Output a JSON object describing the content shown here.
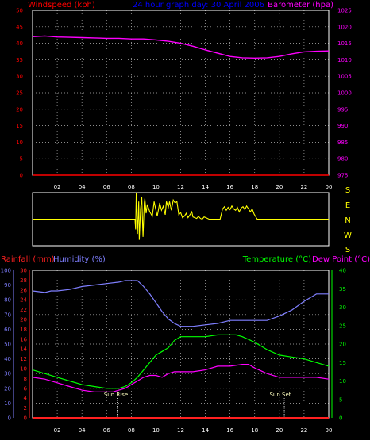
{
  "header": {
    "left": "Windspeed (kph)",
    "center": "24 hour graph day:  30 April 2006",
    "right": "Barometer (hpa)"
  },
  "lower_header": {
    "rainfall": "Rainfall (mm)",
    "humidity": "Humidity (%)",
    "temperature": "Temperature (°C)",
    "dewpoint": "Dew Point (°C)"
  },
  "annotations": {
    "sunrise": "Sun Rise",
    "sunset": "Sun Set"
  },
  "colors": {
    "windspeed": "#ff0000",
    "barometer": "#ff00ff",
    "direction": "#ffff00",
    "humidity": "#7f7fff",
    "rainfall": "#ff2020",
    "temperature": "#00ff00",
    "dewpoint": "#ff00ff",
    "title": "#0000ff",
    "axis": "#ffffff",
    "grid": "#bbbbbb",
    "annotation": "#ffffc0"
  },
  "chart_data": [
    {
      "type": "line",
      "title": "24 hour graph day:  30 April 2006",
      "x_ticks": [
        "02",
        "04",
        "06",
        "08",
        "10",
        "12",
        "14",
        "16",
        "18",
        "20",
        "22",
        "00"
      ],
      "xlim": [
        0,
        24
      ],
      "y_left": {
        "label": "Windspeed (kph)",
        "ylim": [
          0,
          50
        ],
        "ticks": [
          "0",
          "5",
          "10",
          "15",
          "20",
          "25",
          "30",
          "35",
          "40",
          "45",
          "50"
        ]
      },
      "y_right": {
        "label": "Barometer (hpa)",
        "ylim": [
          975,
          1025
        ],
        "ticks": [
          "975",
          "980",
          "985",
          "990",
          "995",
          "1000",
          "1005",
          "1010",
          "1015",
          "1020",
          "1025"
        ]
      },
      "grid": true,
      "series": [
        {
          "name": "Windspeed (kph)",
          "axis": "left",
          "x": [
            0,
            24
          ],
          "y": [
            0,
            0
          ]
        },
        {
          "name": "Barometer (hpa)",
          "axis": "right",
          "x": [
            0,
            1,
            2,
            3,
            4,
            5,
            6,
            7,
            8,
            9,
            10,
            11,
            12,
            13,
            14,
            15,
            16,
            17,
            18,
            19,
            20,
            21,
            22,
            23,
            24
          ],
          "y": [
            1017,
            1017.2,
            1016.9,
            1016.8,
            1016.7,
            1016.6,
            1016.5,
            1016.5,
            1016.3,
            1016.3,
            1016,
            1015.6,
            1015,
            1014.1,
            1013,
            1012,
            1011,
            1010.6,
            1010.5,
            1010.6,
            1011,
            1011.8,
            1012.4,
            1012.6,
            1012.7
          ]
        }
      ]
    },
    {
      "type": "line",
      "title": "",
      "y_labels": [
        "S",
        "E",
        "N",
        "W",
        "S"
      ],
      "x_ticks": [
        "02",
        "04",
        "06",
        "08",
        "10",
        "12",
        "14",
        "16",
        "18",
        "20",
        "22",
        "00"
      ],
      "xlim": [
        0,
        24
      ],
      "ylim": [
        0,
        360
      ],
      "series": [
        {
          "name": "Wind direction",
          "x": [
            0,
            8.3,
            8.35,
            8.4,
            8.5,
            8.6,
            8.65,
            8.75,
            8.85,
            8.95,
            9.05,
            9.1,
            9.2,
            9.3,
            9.5,
            9.7,
            9.85,
            9.95,
            10.1,
            10.3,
            10.45,
            10.6,
            10.75,
            10.85,
            11,
            11.1,
            11.25,
            11.4,
            11.55,
            11.7,
            11.85,
            12,
            12.15,
            12.3,
            12.45,
            12.6,
            12.75,
            12.9,
            13,
            13.15,
            13.3,
            13.45,
            13.6,
            13.75,
            13.9,
            14.05,
            14.3,
            15.2,
            15.4,
            15.55,
            15.7,
            15.85,
            16,
            16.15,
            16.3,
            16.45,
            16.6,
            16.75,
            16.9,
            17.05,
            17.2,
            17.35,
            17.5,
            17.65,
            17.8,
            17.95,
            18.2,
            24
          ],
          "y": [
            180,
            180,
            110,
            360,
            80,
            300,
            40,
            250,
            330,
            60,
            290,
            320,
            220,
            280,
            230,
            200,
            300,
            260,
            200,
            290,
            240,
            270,
            210,
            300,
            260,
            300,
            240,
            310,
            290,
            300,
            210,
            225,
            190,
            200,
            220,
            190,
            210,
            230,
            195,
            190,
            185,
            200,
            185,
            180,
            195,
            190,
            180,
            180,
            250,
            265,
            240,
            260,
            245,
            270,
            250,
            240,
            260,
            230,
            255,
            265,
            245,
            270,
            250,
            230,
            250,
            215,
            180,
            180
          ]
        }
      ]
    },
    {
      "type": "line",
      "title": "",
      "x_ticks": [
        "02",
        "04",
        "06",
        "08",
        "10",
        "12",
        "14",
        "16",
        "18",
        "20",
        "22",
        "00"
      ],
      "xlim": [
        0,
        24
      ],
      "y_humidity": {
        "label": "Humidity (%)",
        "ylim": [
          0,
          100
        ],
        "ticks": [
          "0",
          "10",
          "20",
          "30",
          "40",
          "50",
          "60",
          "70",
          "80",
          "90",
          "100"
        ]
      },
      "y_rainfall": {
        "label": "Rainfall (mm)",
        "ylim": [
          0,
          30
        ],
        "ticks": [
          "0",
          "2",
          "4",
          "6",
          "8",
          "10",
          "12",
          "14",
          "16",
          "18",
          "20",
          "22",
          "24",
          "26",
          "28",
          "30"
        ]
      },
      "y_temperature": {
        "label": "Temperature (°C)",
        "ylim": [
          0,
          40
        ],
        "ticks": [
          "0",
          "5",
          "10",
          "15",
          "20",
          "25",
          "30",
          "35",
          "40"
        ]
      },
      "grid": true,
      "series": [
        {
          "name": "Humidity (%)",
          "axis": "humidity",
          "x": [
            0,
            1,
            1.5,
            2,
            3,
            4,
            5,
            6,
            7,
            7.5,
            8,
            8.5,
            9,
            9.5,
            10,
            10.5,
            11,
            11.5,
            12,
            12.5,
            13,
            14,
            15,
            16,
            17,
            18,
            18.5,
            19,
            20,
            21,
            22,
            23,
            24
          ],
          "y": [
            86,
            85,
            86,
            86,
            87,
            89,
            90,
            91,
            92,
            93,
            93,
            93,
            89,
            84,
            78,
            72,
            67,
            64,
            62,
            62,
            62,
            63,
            64,
            66,
            66,
            66,
            66,
            66,
            69,
            73,
            79,
            84,
            84
          ]
        },
        {
          "name": "Rainfall (mm)",
          "axis": "rainfall",
          "x": [
            0,
            24
          ],
          "y": [
            0,
            0
          ]
        },
        {
          "name": "Temperature (°C)",
          "axis": "temperature",
          "x": [
            0,
            1,
            2,
            3,
            4,
            5,
            6,
            6.5,
            7,
            7.5,
            8,
            8.5,
            9,
            9.5,
            10,
            10.5,
            11,
            11.5,
            12,
            12.5,
            13,
            14,
            15,
            16,
            16.5,
            17,
            18,
            19,
            20,
            21,
            22,
            23,
            24
          ],
          "y": [
            13,
            12,
            11,
            10,
            9,
            8.5,
            8,
            8,
            8,
            8.5,
            9.5,
            11,
            13,
            15,
            17,
            18,
            19,
            21,
            22,
            22,
            22,
            22,
            22.5,
            22.5,
            22.5,
            22,
            20.5,
            18.5,
            17,
            16.5,
            16,
            15,
            14
          ]
        },
        {
          "name": "Dew Point (°C)",
          "axis": "temperature",
          "x": [
            0,
            1,
            2,
            3,
            4,
            5,
            6,
            6.5,
            7,
            7.5,
            8,
            8.5,
            9,
            9.5,
            10,
            10.5,
            11,
            11.5,
            12,
            13,
            14,
            15,
            16,
            17,
            17.5,
            18,
            19,
            20,
            21,
            22,
            23,
            24
          ],
          "y": [
            11,
            10.5,
            9.5,
            8.5,
            7.5,
            7,
            7,
            7,
            7.5,
            8,
            9,
            10,
            11,
            11.5,
            11.5,
            11,
            12,
            12.5,
            12.5,
            12.5,
            13,
            14,
            14,
            14.5,
            14.5,
            13.5,
            12,
            11,
            11,
            11,
            11,
            10.5
          ]
        }
      ]
    }
  ]
}
